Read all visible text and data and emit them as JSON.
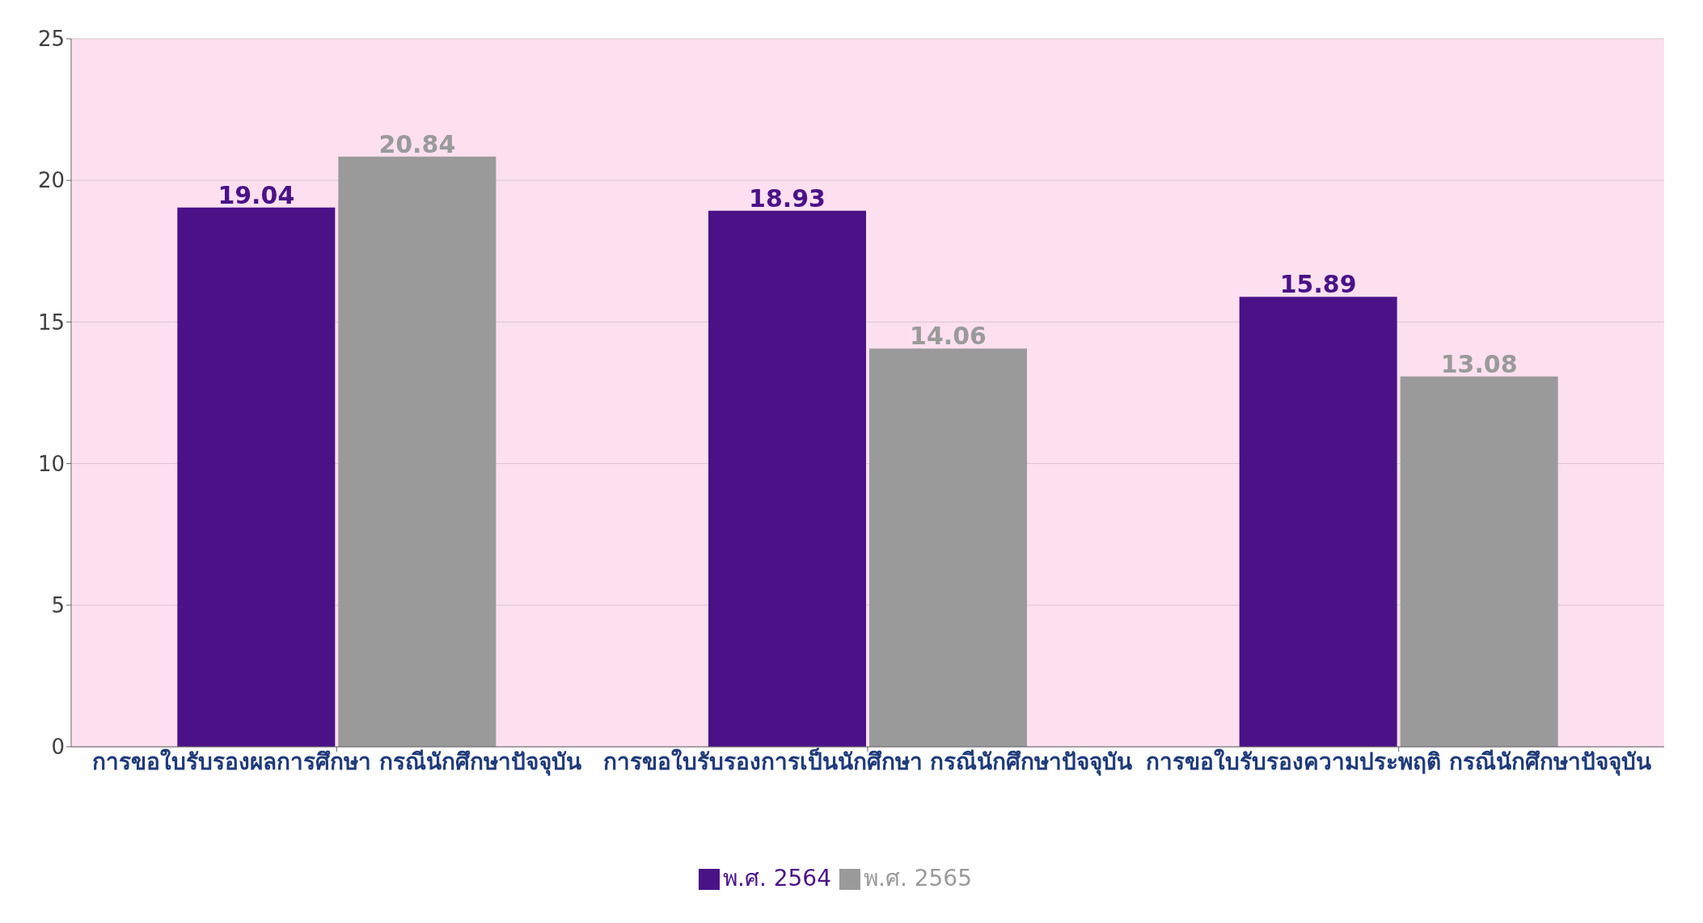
{
  "chart_data": {
    "type": "bar",
    "categories": [
      "การขอใบรับรองผลการศึกษา กรณีนักศึกษาปัจจุบัน",
      "การขอใบรับรองการเป็นนักศึกษา กรณีนักศึกษาปัจจุบัน",
      "การขอใบรับรองความประพฤติ กรณีนักศึกษาปัจจุบัน"
    ],
    "series": [
      {
        "name": "พ.ศ. 2564",
        "color": "#4b1288",
        "values": [
          19.04,
          18.93,
          15.89
        ]
      },
      {
        "name": "พ.ศ. 2565",
        "color": "#9a9a9a",
        "values": [
          20.84,
          14.06,
          13.08
        ]
      }
    ],
    "ylim": [
      0,
      25
    ],
    "yticks": [
      0,
      5,
      10,
      15,
      20,
      25
    ],
    "grid": "y",
    "legend": "bottom",
    "data_labels": true
  }
}
